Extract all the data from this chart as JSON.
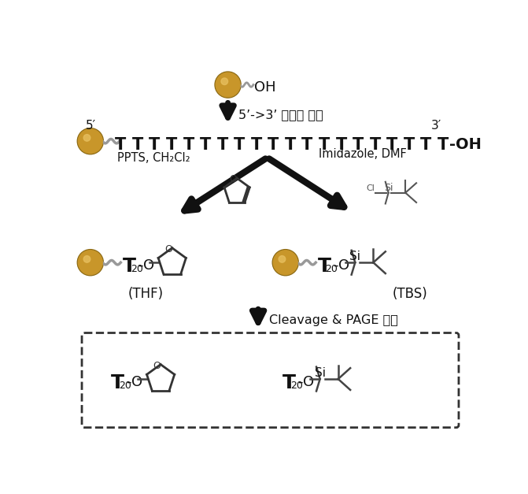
{
  "bg_color": "#ffffff",
  "bead_color": "#C8962A",
  "bead_highlight": "#E8C060",
  "bead_edge_color": "#8B6914",
  "arrow_color": "#111111",
  "text_color": "#111111",
  "bond_color": "#444444",
  "step1_label": "5’->3’ 올리고 합성",
  "step2_label_left": "PPTS, CH₂Cl₂",
  "step2_label_right": "Imidazole, DMF",
  "step3_label": "Cleavage & PAGE 정제",
  "thf_label": "(THF)",
  "tbs_label": "(TBS)",
  "five_prime": "5′",
  "three_prime": "3′"
}
